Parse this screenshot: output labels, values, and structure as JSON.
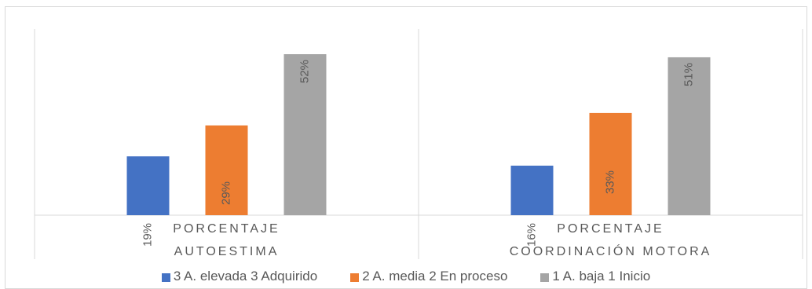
{
  "chart_data": {
    "type": "bar",
    "categories": [
      "PORCENTAJE AUTOESTIMA",
      "PORCENTAJE COORDINACIÓN MOTORA"
    ],
    "category_lines": [
      [
        "PORCENTAJE",
        "AUTOESTIMA"
      ],
      [
        "PORCENTAJE",
        "COORDINACIÓN MOTORA"
      ]
    ],
    "series": [
      {
        "name": "3 A. elevada 3 Adquirido",
        "color": "#4472c4",
        "values": [
          19,
          16
        ],
        "labels": [
          "19%",
          "16%"
        ]
      },
      {
        "name": "2 A. media 2 En proceso",
        "color": "#ed7d31",
        "values": [
          29,
          33
        ],
        "labels": [
          "29%",
          "33%"
        ]
      },
      {
        "name": "1 A. baja 1 Inicio",
        "color": "#a5a5a5",
        "values": [
          52,
          51
        ],
        "labels": [
          "52%",
          "51%"
        ]
      }
    ],
    "ylim": [
      0,
      52
    ],
    "grid": false,
    "legend_position": "bottom"
  }
}
